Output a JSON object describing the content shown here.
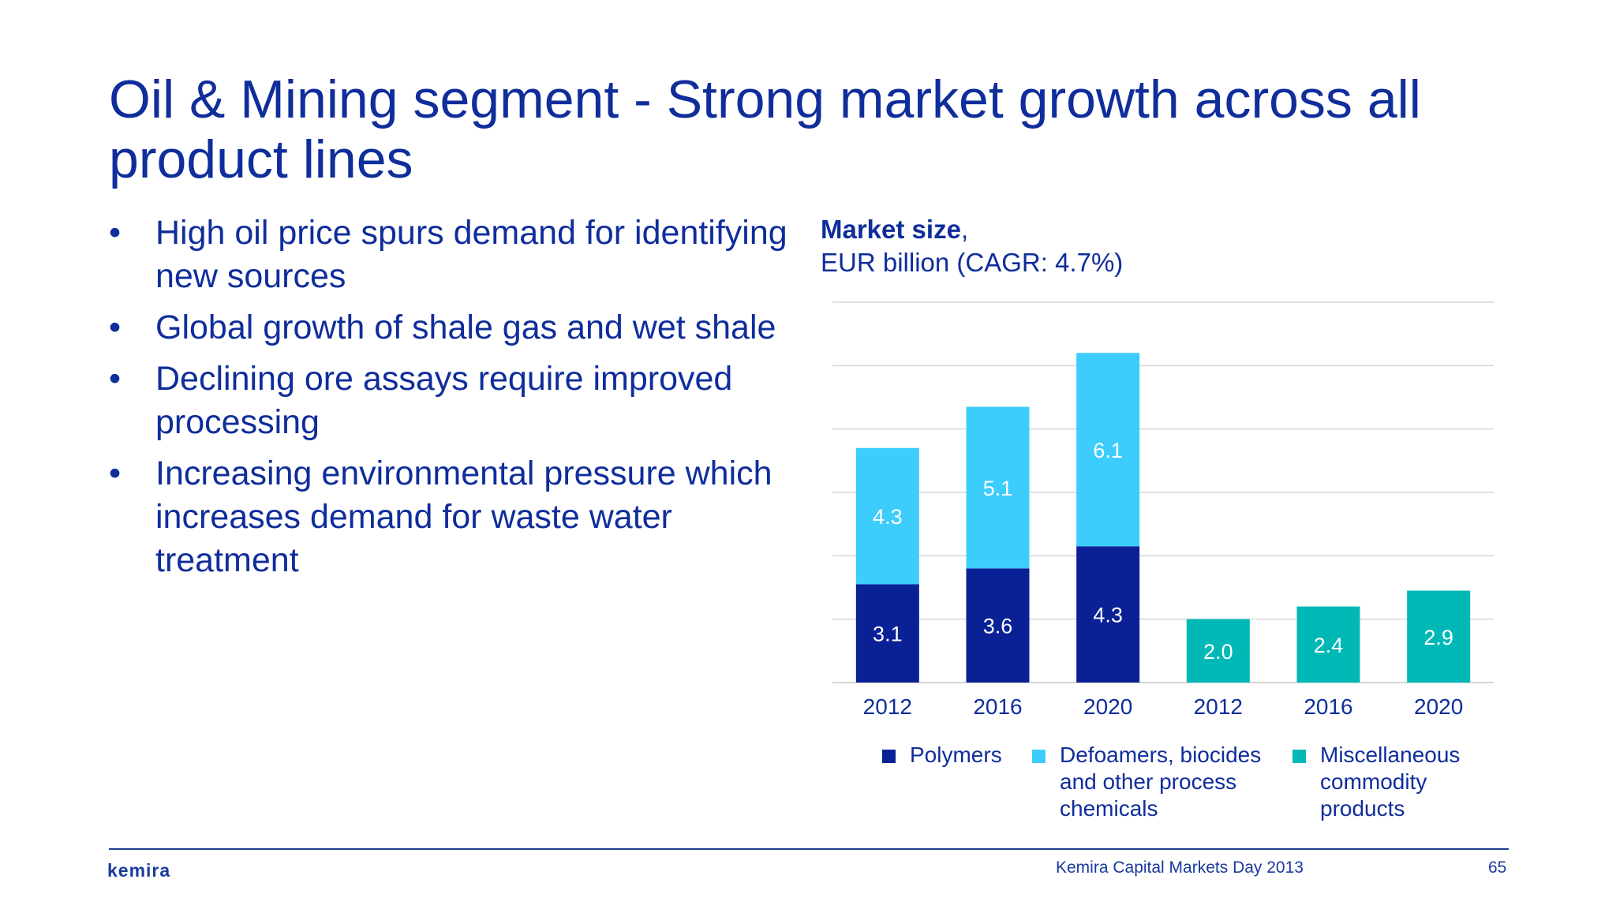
{
  "title": "Oil & Mining segment - Strong market growth across all product lines",
  "bullets": [
    "High oil price spurs demand for identifying new sources",
    "Global growth of shale gas and wet shale",
    "Declining ore assays require improved processing",
    "Increasing environmental pressure which increases demand for waste water treatment"
  ],
  "bullet_marker": "•",
  "chart_heading": {
    "bold": "Market size",
    "comma": ",",
    "sub": "EUR billion (CAGR: 4.7%)"
  },
  "chart_data": {
    "type": "bar",
    "stacked": true,
    "categories": [
      "2012",
      "2016",
      "2020",
      "2012",
      "2016",
      "2020"
    ],
    "series": [
      {
        "name": "Polymers",
        "color": "#0a2196",
        "values": [
          3.1,
          3.6,
          4.3,
          null,
          null,
          null
        ],
        "label_color": "#ffffff"
      },
      {
        "name": "Defoamers, biocides and other process chemicals",
        "color": "#3dcdfc",
        "values": [
          4.3,
          5.1,
          6.1,
          null,
          null,
          null
        ],
        "label_color": "#ffffff"
      },
      {
        "name": "Miscellaneous commodity products",
        "color": "#00b8b5",
        "values": [
          null,
          null,
          null,
          2.0,
          2.4,
          2.9
        ],
        "label_color": "#ffffff"
      }
    ],
    "ylim": [
      0,
      12
    ],
    "grid": true,
    "legend_position": "bottom"
  },
  "footer": {
    "logo": "kemira",
    "event": "Kemira Capital Markets Day 2013",
    "page": "65"
  }
}
